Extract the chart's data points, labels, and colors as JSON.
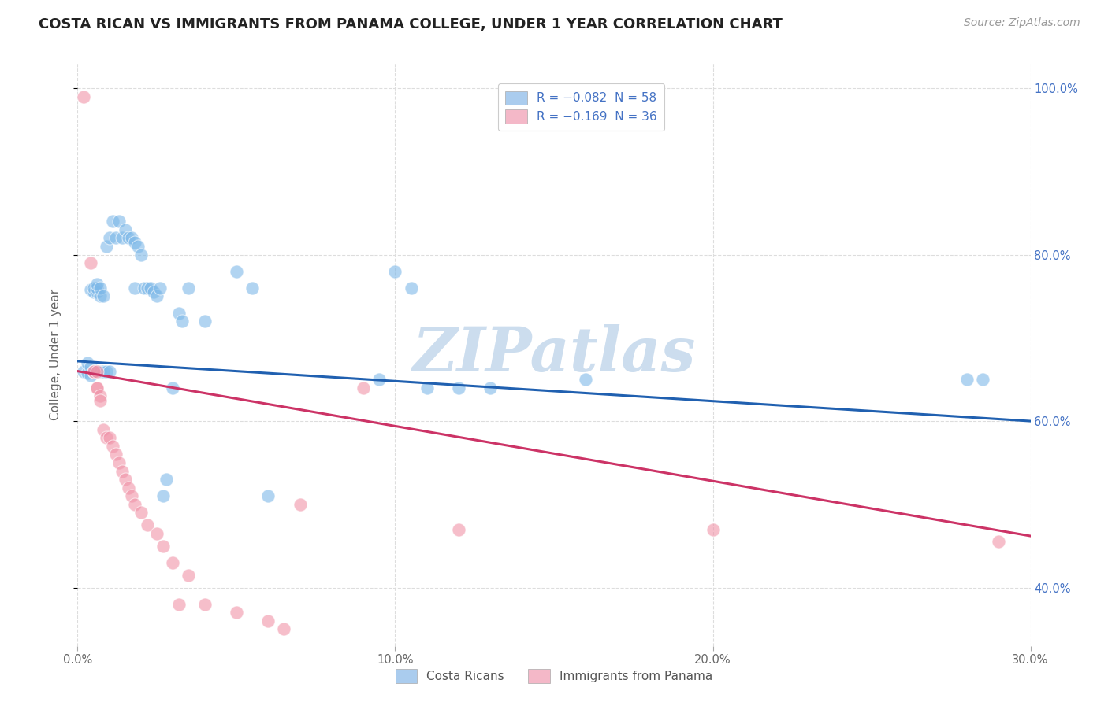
{
  "title": "COSTA RICAN VS IMMIGRANTS FROM PANAMA COLLEGE, UNDER 1 YEAR CORRELATION CHART",
  "source": "Source: ZipAtlas.com",
  "ylabel": "College, Under 1 year",
  "xlim": [
    0.0,
    0.3
  ],
  "ylim": [
    0.33,
    1.03
  ],
  "blue_color": "#7db8e8",
  "pink_color": "#f093a8",
  "watermark": "ZIPatlas",
  "blue_scatter": [
    [
      0.002,
      0.66
    ],
    [
      0.003,
      0.658
    ],
    [
      0.003,
      0.67
    ],
    [
      0.004,
      0.655
    ],
    [
      0.004,
      0.665
    ],
    [
      0.004,
      0.758
    ],
    [
      0.005,
      0.66
    ],
    [
      0.005,
      0.755
    ],
    [
      0.005,
      0.76
    ],
    [
      0.006,
      0.66
    ],
    [
      0.006,
      0.755
    ],
    [
      0.006,
      0.76
    ],
    [
      0.006,
      0.765
    ],
    [
      0.007,
      0.66
    ],
    [
      0.007,
      0.75
    ],
    [
      0.007,
      0.76
    ],
    [
      0.008,
      0.66
    ],
    [
      0.008,
      0.75
    ],
    [
      0.009,
      0.66
    ],
    [
      0.009,
      0.81
    ],
    [
      0.01,
      0.66
    ],
    [
      0.01,
      0.82
    ],
    [
      0.011,
      0.84
    ],
    [
      0.012,
      0.82
    ],
    [
      0.013,
      0.84
    ],
    [
      0.014,
      0.82
    ],
    [
      0.015,
      0.83
    ],
    [
      0.016,
      0.82
    ],
    [
      0.017,
      0.82
    ],
    [
      0.018,
      0.815
    ],
    [
      0.018,
      0.76
    ],
    [
      0.019,
      0.81
    ],
    [
      0.02,
      0.8
    ],
    [
      0.021,
      0.76
    ],
    [
      0.022,
      0.76
    ],
    [
      0.023,
      0.76
    ],
    [
      0.024,
      0.755
    ],
    [
      0.025,
      0.75
    ],
    [
      0.026,
      0.76
    ],
    [
      0.027,
      0.51
    ],
    [
      0.028,
      0.53
    ],
    [
      0.03,
      0.64
    ],
    [
      0.032,
      0.73
    ],
    [
      0.033,
      0.72
    ],
    [
      0.035,
      0.76
    ],
    [
      0.04,
      0.72
    ],
    [
      0.05,
      0.78
    ],
    [
      0.055,
      0.76
    ],
    [
      0.06,
      0.51
    ],
    [
      0.095,
      0.65
    ],
    [
      0.1,
      0.78
    ],
    [
      0.105,
      0.76
    ],
    [
      0.11,
      0.64
    ],
    [
      0.12,
      0.64
    ],
    [
      0.13,
      0.64
    ],
    [
      0.16,
      0.65
    ],
    [
      0.28,
      0.65
    ],
    [
      0.285,
      0.65
    ]
  ],
  "pink_scatter": [
    [
      0.002,
      0.99
    ],
    [
      0.004,
      0.79
    ],
    [
      0.005,
      0.66
    ],
    [
      0.005,
      0.66
    ],
    [
      0.006,
      0.66
    ],
    [
      0.006,
      0.64
    ],
    [
      0.006,
      0.64
    ],
    [
      0.007,
      0.63
    ],
    [
      0.007,
      0.625
    ],
    [
      0.008,
      0.59
    ],
    [
      0.009,
      0.58
    ],
    [
      0.01,
      0.58
    ],
    [
      0.011,
      0.57
    ],
    [
      0.012,
      0.56
    ],
    [
      0.013,
      0.55
    ],
    [
      0.014,
      0.54
    ],
    [
      0.015,
      0.53
    ],
    [
      0.016,
      0.52
    ],
    [
      0.017,
      0.51
    ],
    [
      0.018,
      0.5
    ],
    [
      0.02,
      0.49
    ],
    [
      0.022,
      0.475
    ],
    [
      0.025,
      0.465
    ],
    [
      0.027,
      0.45
    ],
    [
      0.03,
      0.43
    ],
    [
      0.032,
      0.38
    ],
    [
      0.035,
      0.415
    ],
    [
      0.04,
      0.38
    ],
    [
      0.05,
      0.37
    ],
    [
      0.06,
      0.36
    ],
    [
      0.065,
      0.35
    ],
    [
      0.07,
      0.5
    ],
    [
      0.09,
      0.64
    ],
    [
      0.12,
      0.47
    ],
    [
      0.2,
      0.47
    ],
    [
      0.29,
      0.455
    ]
  ],
  "blue_line_x": [
    0.0,
    0.3
  ],
  "blue_line_y": [
    0.672,
    0.6
  ],
  "pink_line_x": [
    0.0,
    0.3
  ],
  "pink_line_y": [
    0.66,
    0.462
  ],
  "legend_r1": "R = −0.082",
  "legend_n1": "N = 58",
  "legend_r2": "R = −0.169",
  "legend_n2": "N = 36",
  "legend_color_blue": "#aaccee",
  "legend_color_pink": "#f4b8c8",
  "legend_text_color": "#4472c4",
  "bottom_legend_blue": "Costa Ricans",
  "bottom_legend_pink": "Immigrants from Panama",
  "title_fontsize": 13,
  "axis_label_fontsize": 11,
  "tick_fontsize": 10.5,
  "source_fontsize": 10,
  "watermark_color": "#ccddee",
  "background_color": "#ffffff",
  "grid_color": "#dddddd"
}
